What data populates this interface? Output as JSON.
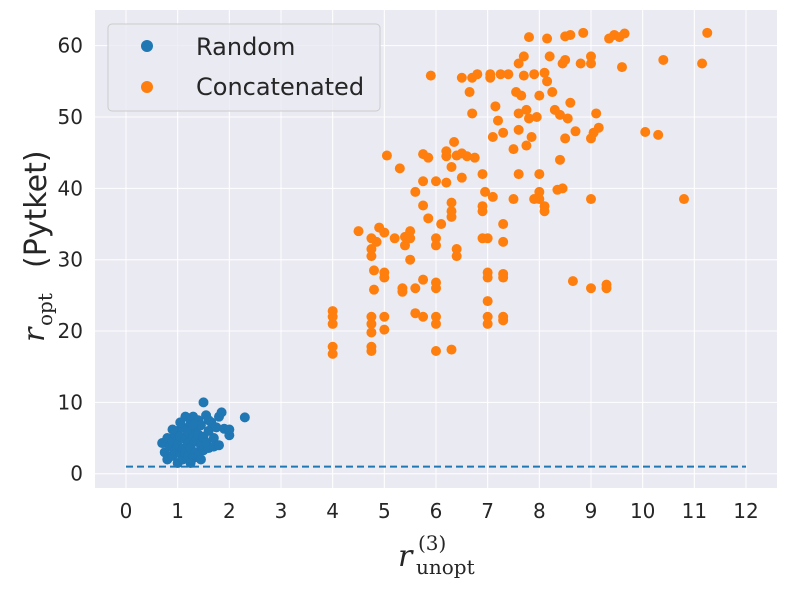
{
  "chart_data": {
    "type": "scatter",
    "title": "",
    "xlabel": {
      "base": "r",
      "subscript": "unopt",
      "superscript": "(3)"
    },
    "ylabel": {
      "base": "r",
      "subscript": "opt",
      "suffix": "(Pytket)"
    },
    "xlim": [
      -0.6,
      12.6
    ],
    "ylim": [
      -2,
      65
    ],
    "xticks": [
      0,
      1,
      2,
      3,
      4,
      5,
      6,
      7,
      8,
      9,
      10,
      11,
      12
    ],
    "yticks": [
      0,
      10,
      20,
      30,
      40,
      50,
      60
    ],
    "xtick_labels": [
      "0",
      "1",
      "2",
      "3",
      "4",
      "5",
      "6",
      "7",
      "8",
      "9",
      "10",
      "11",
      "12"
    ],
    "ytick_labels": [
      "0",
      "10",
      "20",
      "30",
      "40",
      "50",
      "60"
    ],
    "grid": true,
    "legend_position": "top-left",
    "colors": {
      "background": "#eaeaf2",
      "grid": "#ffffff",
      "random": "#1f77b4",
      "concatenated": "#ff7f0e"
    },
    "reference_line": {
      "x": [
        0,
        12
      ],
      "y": [
        1,
        1
      ],
      "style": "dashed",
      "color": "#1f77b4"
    },
    "series": [
      {
        "name": "Random",
        "color": "#1f77b4",
        "points": [
          [
            0.7,
            4.3
          ],
          [
            0.75,
            3.0
          ],
          [
            0.8,
            2.0
          ],
          [
            0.8,
            5.0
          ],
          [
            0.85,
            3.8
          ],
          [
            0.9,
            4.5
          ],
          [
            0.9,
            2.5
          ],
          [
            0.95,
            5.5
          ],
          [
            0.95,
            3.2
          ],
          [
            1.0,
            1.5
          ],
          [
            1.0,
            4.0
          ],
          [
            1.0,
            6.0
          ],
          [
            1.05,
            2.8
          ],
          [
            1.05,
            5.2
          ],
          [
            1.1,
            3.5
          ],
          [
            1.1,
            6.5
          ],
          [
            1.1,
            2.0
          ],
          [
            1.15,
            4.8
          ],
          [
            1.15,
            3.0
          ],
          [
            1.2,
            5.8
          ],
          [
            1.2,
            2.5
          ],
          [
            1.2,
            4.2
          ],
          [
            1.25,
            7.0
          ],
          [
            1.25,
            3.6
          ],
          [
            1.3,
            5.0
          ],
          [
            1.3,
            2.2
          ],
          [
            1.3,
            8.0
          ],
          [
            1.35,
            4.5
          ],
          [
            1.35,
            6.2
          ],
          [
            1.35,
            3.0
          ],
          [
            1.4,
            7.5
          ],
          [
            1.4,
            5.5
          ],
          [
            1.4,
            2.6
          ],
          [
            1.45,
            4.0
          ],
          [
            1.45,
            6.8
          ],
          [
            1.5,
            3.3
          ],
          [
            1.5,
            10.0
          ],
          [
            1.5,
            5.2
          ],
          [
            1.55,
            8.2
          ],
          [
            1.55,
            4.4
          ],
          [
            1.6,
            6.0
          ],
          [
            1.6,
            3.6
          ],
          [
            1.65,
            7.2
          ],
          [
            1.7,
            5.0
          ],
          [
            1.7,
            3.8
          ],
          [
            1.75,
            6.5
          ],
          [
            1.8,
            8.0
          ],
          [
            1.8,
            4.0
          ],
          [
            1.85,
            8.6
          ],
          [
            1.9,
            6.3
          ],
          [
            2.0,
            5.4
          ],
          [
            2.0,
            6.2
          ],
          [
            2.3,
            7.9
          ],
          [
            1.25,
            1.5
          ],
          [
            1.05,
            7.2
          ],
          [
            0.9,
            6.2
          ],
          [
            1.15,
            8.0
          ],
          [
            1.3,
            6.9
          ],
          [
            1.6,
            7.5
          ],
          [
            1.45,
            2.0
          ]
        ]
      },
      {
        "name": "Concatenated",
        "color": "#ff7f0e",
        "points": [
          [
            4.0,
            16.8
          ],
          [
            4.0,
            17.8
          ],
          [
            4.0,
            21.0
          ],
          [
            4.0,
            22.0
          ],
          [
            4.0,
            22.8
          ],
          [
            4.5,
            34.0
          ],
          [
            4.75,
            17.2
          ],
          [
            4.75,
            17.8
          ],
          [
            4.75,
            19.8
          ],
          [
            4.75,
            21.0
          ],
          [
            4.75,
            22.0
          ],
          [
            4.75,
            30.5
          ],
          [
            4.75,
            31.5
          ],
          [
            4.75,
            33.0
          ],
          [
            4.8,
            25.8
          ],
          [
            4.8,
            28.5
          ],
          [
            4.85,
            32.5
          ],
          [
            4.9,
            34.5
          ],
          [
            5.0,
            20.2
          ],
          [
            5.0,
            22.0
          ],
          [
            5.0,
            27.5
          ],
          [
            5.0,
            28.2
          ],
          [
            5.0,
            33.8
          ],
          [
            5.05,
            44.6
          ],
          [
            5.2,
            33.0
          ],
          [
            5.3,
            42.8
          ],
          [
            5.35,
            25.5
          ],
          [
            5.35,
            26.0
          ],
          [
            5.4,
            32.0
          ],
          [
            5.4,
            33.2
          ],
          [
            5.5,
            30.0
          ],
          [
            5.5,
            33.0
          ],
          [
            5.5,
            34.0
          ],
          [
            5.6,
            22.5
          ],
          [
            5.6,
            26.0
          ],
          [
            5.6,
            39.5
          ],
          [
            5.75,
            22.0
          ],
          [
            5.75,
            27.2
          ],
          [
            5.75,
            37.6
          ],
          [
            5.75,
            41.0
          ],
          [
            5.75,
            44.8
          ],
          [
            5.85,
            35.8
          ],
          [
            5.85,
            44.3
          ],
          [
            5.9,
            55.8
          ],
          [
            6.0,
            17.2
          ],
          [
            6.0,
            21.0
          ],
          [
            6.0,
            22.0
          ],
          [
            6.0,
            26.0
          ],
          [
            6.0,
            26.8
          ],
          [
            6.0,
            32.0
          ],
          [
            6.0,
            33.0
          ],
          [
            6.0,
            41.0
          ],
          [
            6.1,
            35.0
          ],
          [
            6.2,
            44.5
          ],
          [
            6.2,
            45.2
          ],
          [
            6.2,
            40.8
          ],
          [
            6.3,
            36.0
          ],
          [
            6.3,
            36.8
          ],
          [
            6.3,
            38.0
          ],
          [
            6.3,
            43.0
          ],
          [
            6.35,
            46.5
          ],
          [
            6.4,
            44.6
          ],
          [
            6.4,
            30.5
          ],
          [
            6.4,
            31.5
          ],
          [
            6.3,
            17.4
          ],
          [
            6.5,
            55.5
          ],
          [
            6.5,
            41.5
          ],
          [
            6.5,
            44.9
          ],
          [
            6.6,
            44.5
          ],
          [
            6.65,
            53.5
          ],
          [
            6.7,
            55.5
          ],
          [
            6.7,
            50.5
          ],
          [
            6.75,
            44.3
          ],
          [
            6.8,
            56.0
          ],
          [
            6.9,
            33.0
          ],
          [
            6.9,
            36.8
          ],
          [
            6.9,
            37.5
          ],
          [
            6.9,
            42.0
          ],
          [
            6.95,
            39.5
          ],
          [
            7.0,
            21.0
          ],
          [
            7.0,
            22.0
          ],
          [
            7.0,
            24.2
          ],
          [
            7.0,
            27.5
          ],
          [
            7.0,
            28.2
          ],
          [
            7.0,
            33.0
          ],
          [
            7.05,
            56.0
          ],
          [
            7.05,
            55.5
          ],
          [
            7.1,
            38.8
          ],
          [
            7.1,
            47.2
          ],
          [
            7.15,
            51.5
          ],
          [
            7.2,
            49.5
          ],
          [
            7.25,
            56.0
          ],
          [
            7.3,
            21.5
          ],
          [
            7.3,
            22.0
          ],
          [
            7.3,
            27.5
          ],
          [
            7.3,
            28.0
          ],
          [
            7.3,
            32.5
          ],
          [
            7.3,
            35.0
          ],
          [
            7.3,
            47.8
          ],
          [
            7.4,
            56.0
          ],
          [
            7.5,
            38.5
          ],
          [
            7.5,
            45.5
          ],
          [
            7.55,
            53.5
          ],
          [
            7.6,
            42.0
          ],
          [
            7.6,
            48.2
          ],
          [
            7.6,
            50.5
          ],
          [
            7.6,
            57.5
          ],
          [
            7.65,
            53.0
          ],
          [
            7.7,
            55.8
          ],
          [
            7.7,
            58.5
          ],
          [
            7.75,
            46.0
          ],
          [
            7.75,
            51.0
          ],
          [
            7.8,
            61.2
          ],
          [
            7.8,
            49.8
          ],
          [
            7.85,
            47.2
          ],
          [
            7.9,
            56.0
          ],
          [
            7.9,
            38.5
          ],
          [
            7.95,
            50.0
          ],
          [
            8.0,
            38.5
          ],
          [
            8.0,
            39.5
          ],
          [
            8.0,
            42.0
          ],
          [
            8.0,
            53.0
          ],
          [
            8.1,
            36.8
          ],
          [
            8.1,
            37.5
          ],
          [
            8.1,
            56.2
          ],
          [
            8.15,
            55.0
          ],
          [
            8.15,
            61.0
          ],
          [
            8.2,
            58.5
          ],
          [
            8.25,
            53.5
          ],
          [
            8.3,
            51.0
          ],
          [
            8.35,
            39.8
          ],
          [
            8.4,
            50.3
          ],
          [
            8.4,
            44.0
          ],
          [
            8.45,
            40.0
          ],
          [
            8.45,
            57.5
          ],
          [
            8.5,
            58.0
          ],
          [
            8.5,
            47.0
          ],
          [
            8.5,
            61.3
          ],
          [
            8.55,
            49.8
          ],
          [
            8.6,
            61.5
          ],
          [
            8.6,
            52.0
          ],
          [
            8.65,
            27.0
          ],
          [
            8.7,
            48.0
          ],
          [
            8.8,
            57.5
          ],
          [
            8.85,
            61.8
          ],
          [
            9.0,
            47.0
          ],
          [
            9.0,
            57.5
          ],
          [
            9.0,
            58.5
          ],
          [
            9.0,
            38.5
          ],
          [
            9.0,
            26.0
          ],
          [
            9.05,
            47.8
          ],
          [
            9.1,
            50.5
          ],
          [
            9.15,
            48.5
          ],
          [
            9.3,
            26.0
          ],
          [
            9.3,
            26.5
          ],
          [
            9.35,
            61.0
          ],
          [
            9.45,
            61.5
          ],
          [
            9.55,
            61.2
          ],
          [
            9.6,
            57.0
          ],
          [
            9.65,
            61.7
          ],
          [
            10.05,
            47.9
          ],
          [
            10.3,
            47.5
          ],
          [
            10.4,
            58.0
          ],
          [
            10.8,
            38.5
          ],
          [
            11.15,
            57.5
          ],
          [
            11.25,
            61.8
          ]
        ]
      }
    ]
  },
  "legend": {
    "items": [
      {
        "label": "Random",
        "color": "#1f77b4"
      },
      {
        "label": "Concatenated",
        "color": "#ff7f0e"
      }
    ]
  }
}
